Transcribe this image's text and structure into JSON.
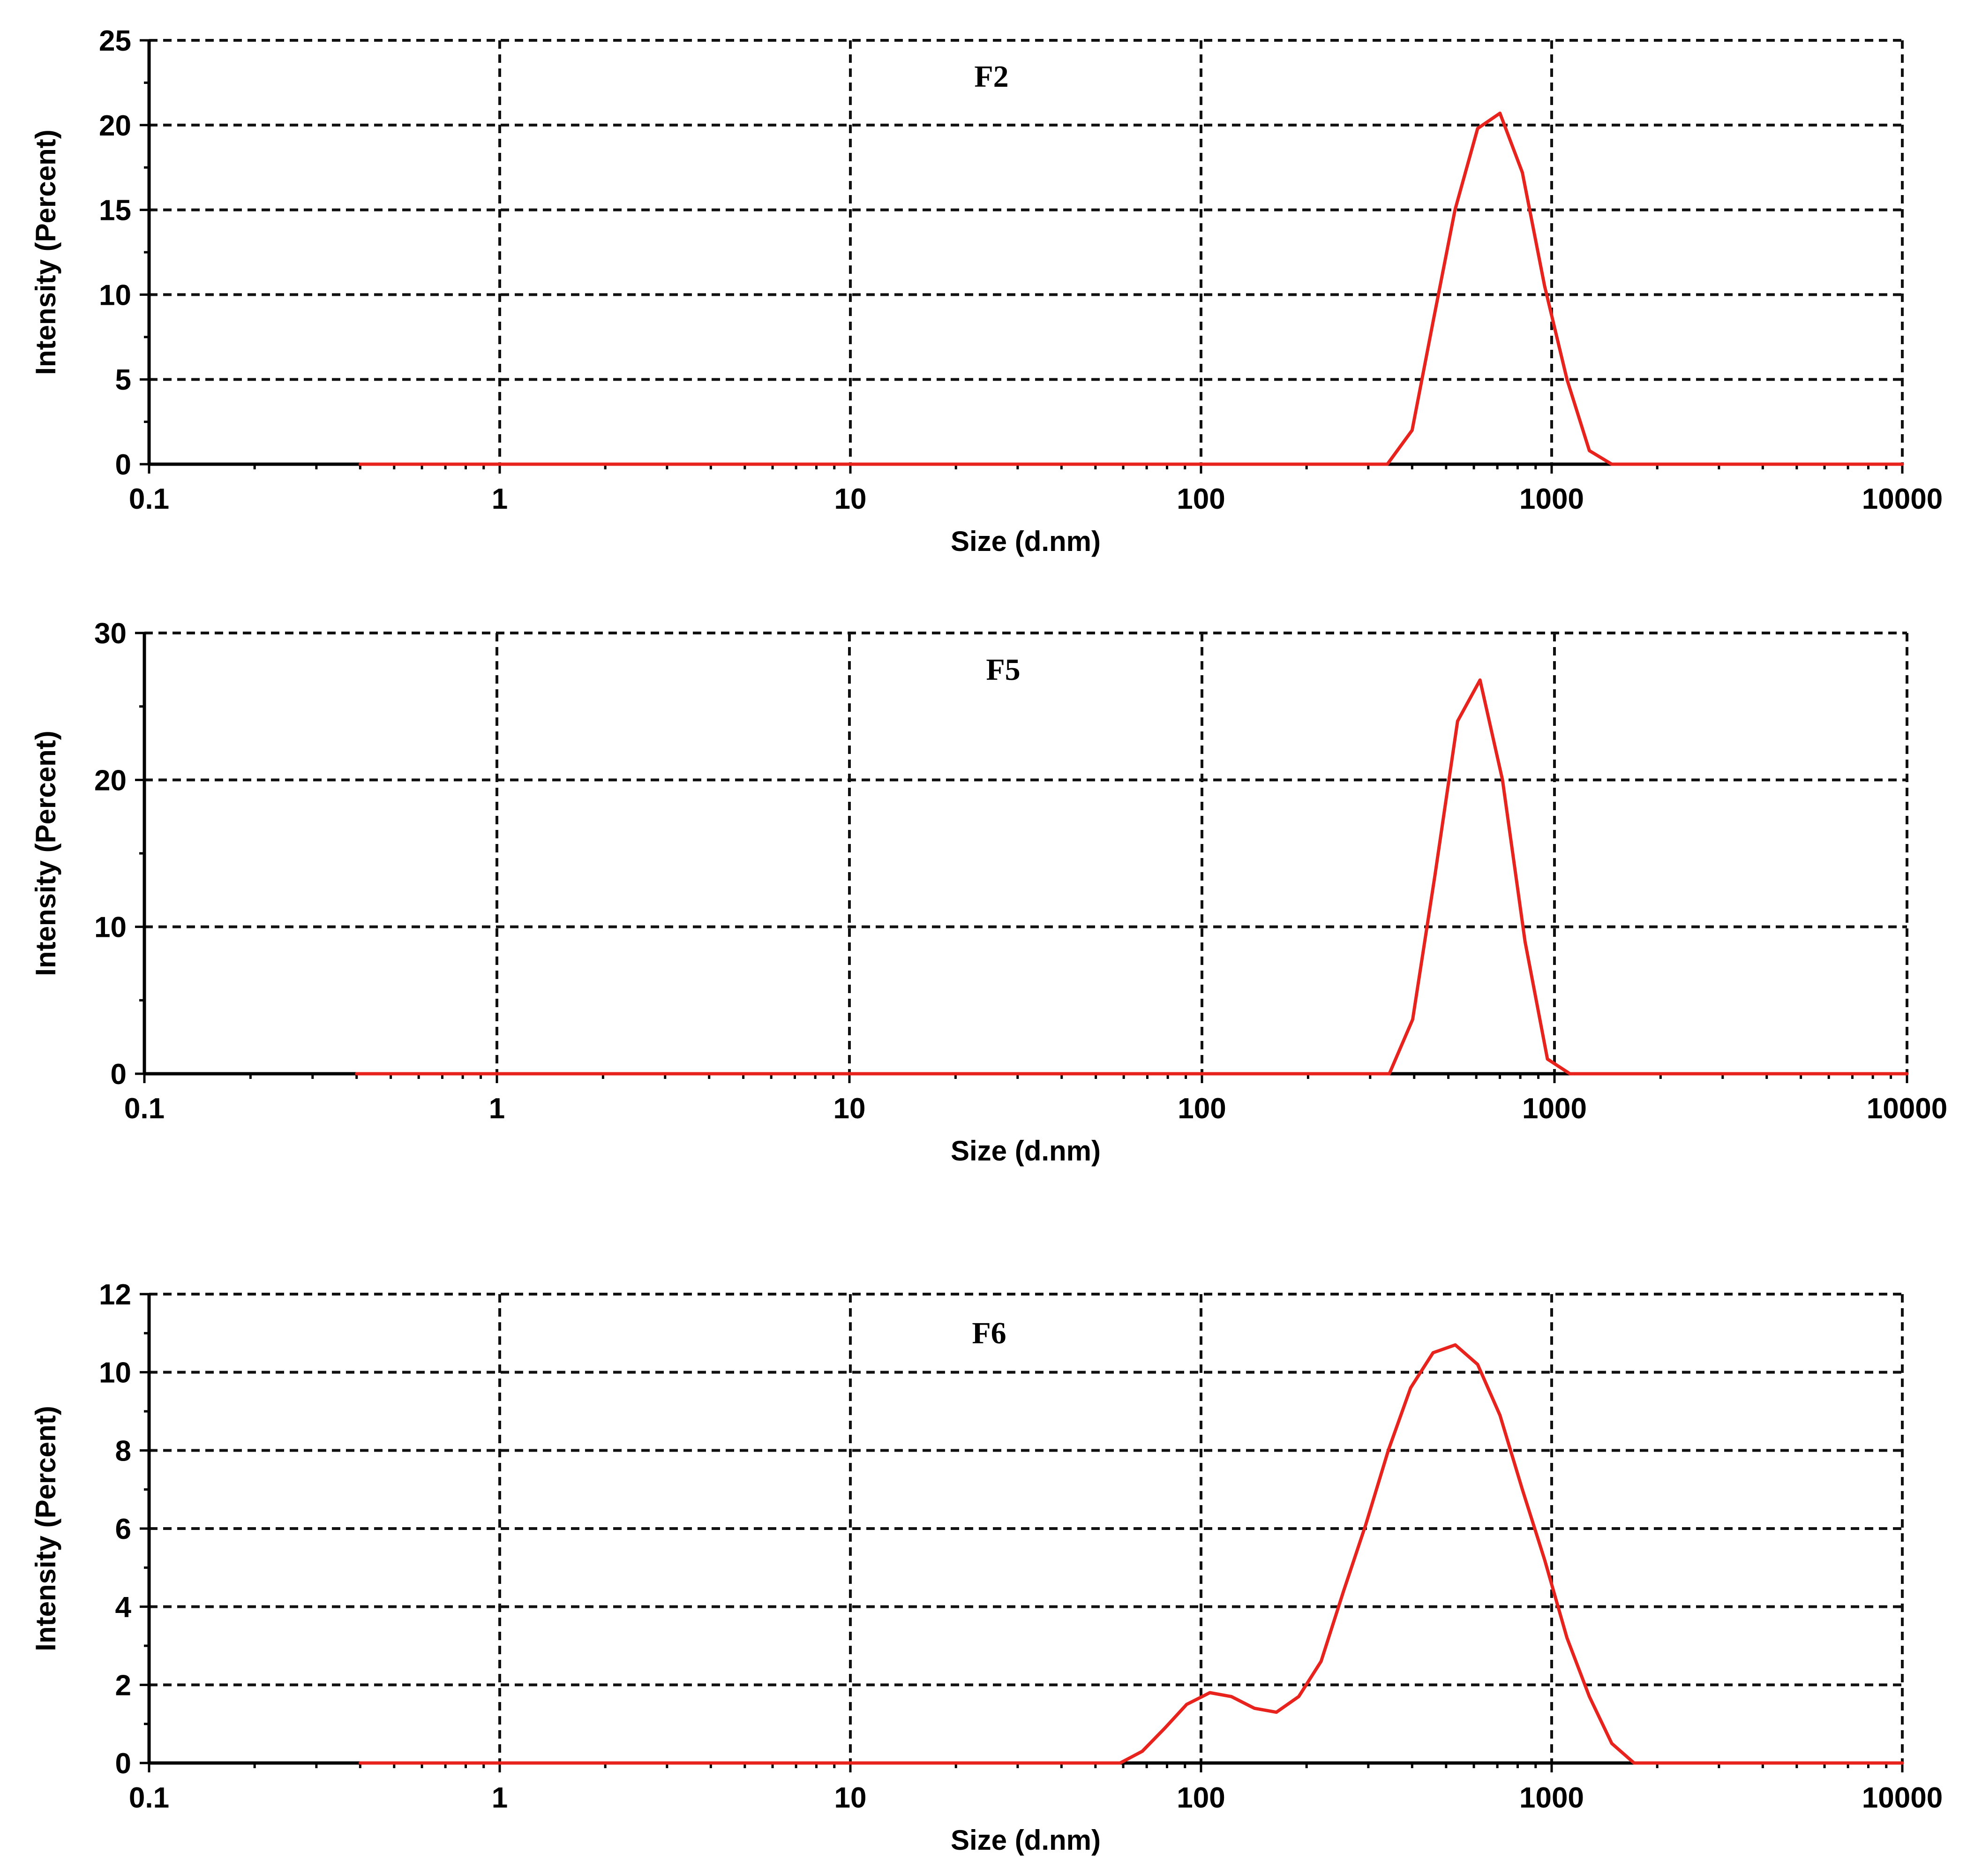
{
  "colors": {
    "series": "#e8221c",
    "grid": "#111111",
    "axis": "#000000",
    "background": "#ffffff"
  },
  "chart_data": [
    {
      "type": "line",
      "title": "F2",
      "xlabel": "Size (d.nm)",
      "ylabel": "Intensity (Percent)",
      "xscale": "log",
      "xlim": [
        0.1,
        10000
      ],
      "ylim": [
        0,
        25
      ],
      "xticks": [
        "0.1",
        "1",
        "10",
        "100",
        "1000",
        "10000"
      ],
      "yticks": [
        "0",
        "5",
        "10",
        "15",
        "20",
        "25"
      ],
      "grid": true,
      "series": [
        {
          "x": [
            0.4,
            1,
            10,
            100,
            340,
            400,
            460,
            530,
            615,
            712,
            825,
            955,
            1106,
            1281,
            1484,
            10000
          ],
          "y": [
            0,
            0,
            0,
            0,
            0,
            2,
            8.5,
            15,
            19.8,
            20.7,
            17.2,
            10.5,
            5,
            0.8,
            0,
            0
          ]
        }
      ]
    },
    {
      "type": "line",
      "title": "F5",
      "xlabel": "Size (d.nm)",
      "ylabel": "Intensity (Percent)",
      "xscale": "log",
      "xlim": [
        0.1,
        10000
      ],
      "ylim": [
        0,
        30
      ],
      "xticks": [
        "0.1",
        "1",
        "10",
        "100",
        "1000",
        "10000"
      ],
      "yticks": [
        "0",
        "10",
        "20",
        "30"
      ],
      "grid": true,
      "series": [
        {
          "x": [
            0.4,
            1,
            10,
            100,
            340,
            396,
            458,
            531,
            615,
            712,
            825,
            955,
            1106,
            10000
          ],
          "y": [
            0,
            0,
            0,
            0,
            0,
            3.7,
            13.5,
            24,
            26.8,
            20,
            9,
            1,
            0,
            0
          ]
        }
      ]
    },
    {
      "type": "line",
      "title": "F6",
      "xlabel": "Size (d.nm)",
      "ylabel": "Intensity (Percent)",
      "xscale": "log",
      "xlim": [
        0.1,
        10000
      ],
      "ylim": [
        0,
        12
      ],
      "xticks": [
        "0.1",
        "1",
        "10",
        "100",
        "1000",
        "10000"
      ],
      "yticks": [
        "0",
        "2",
        "4",
        "6",
        "8",
        "10",
        "12"
      ],
      "grid": true,
      "series": [
        {
          "x": [
            0.4,
            1,
            10,
            58.8,
            68,
            79,
            91,
            106,
            122,
            142,
            164,
            190,
            220,
            255,
            295,
            342,
            396,
            459,
            531,
            615,
            712,
            825,
            955,
            1106,
            1281,
            1484,
            1718,
            1990,
            10000
          ],
          "y": [
            0,
            0,
            0,
            0,
            0.3,
            0.9,
            1.5,
            1.8,
            1.7,
            1.4,
            1.3,
            1.7,
            2.6,
            4.4,
            6.1,
            8,
            9.6,
            10.5,
            10.7,
            10.2,
            8.9,
            7,
            5.2,
            3.2,
            1.7,
            0.5,
            0,
            0,
            0
          ]
        }
      ]
    }
  ]
}
